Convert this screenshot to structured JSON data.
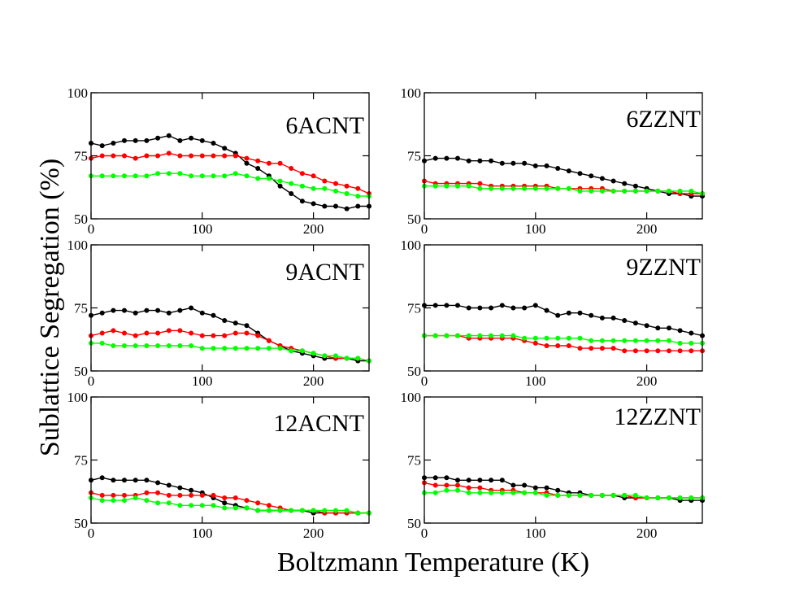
{
  "figure": {
    "ylabel": "Sublattice Segregation (%)",
    "xlabel": "Boltzmann Temperature (K)"
  },
  "chart_data": [
    {
      "type": "line",
      "panel_label": "6ACNT",
      "xlim": [
        0,
        250
      ],
      "ylim": [
        50,
        100
      ],
      "xticks": [
        0,
        100,
        200
      ],
      "yticks": [
        50,
        75,
        100
      ],
      "x": [
        0,
        10,
        20,
        30,
        40,
        50,
        60,
        70,
        80,
        90,
        100,
        110,
        120,
        130,
        140,
        150,
        160,
        170,
        180,
        190,
        200,
        210,
        220,
        230,
        240,
        250
      ],
      "series": [
        {
          "color": "#000000",
          "values": [
            80,
            79,
            80,
            81,
            81,
            81,
            82,
            83,
            81,
            82,
            81,
            80,
            78,
            76,
            72,
            70,
            67,
            63,
            60,
            57,
            56,
            55,
            55,
            54,
            55,
            55
          ]
        },
        {
          "color": "#ff0000",
          "values": [
            74,
            75,
            75,
            75,
            74,
            75,
            75,
            76,
            75,
            75,
            75,
            75,
            75,
            75,
            74,
            73,
            72,
            72,
            70,
            68,
            67,
            65,
            64,
            63,
            62,
            60
          ]
        },
        {
          "color": "#00ff00",
          "values": [
            67,
            67,
            67,
            67,
            67,
            67,
            68,
            68,
            68,
            67,
            67,
            67,
            67,
            68,
            67,
            66,
            66,
            65,
            64,
            63,
            62,
            62,
            61,
            60,
            59,
            59
          ]
        }
      ]
    },
    {
      "type": "line",
      "panel_label": "6ZZNT",
      "xlim": [
        0,
        250
      ],
      "ylim": [
        50,
        100
      ],
      "xticks": [
        0,
        100,
        200
      ],
      "yticks": [
        50,
        75,
        100
      ],
      "x": [
        0,
        10,
        20,
        30,
        40,
        50,
        60,
        70,
        80,
        90,
        100,
        110,
        120,
        130,
        140,
        150,
        160,
        170,
        180,
        190,
        200,
        210,
        220,
        230,
        240,
        250
      ],
      "series": [
        {
          "color": "#000000",
          "values": [
            73,
            74,
            74,
            74,
            73,
            73,
            73,
            72,
            72,
            72,
            71,
            71,
            70,
            69,
            68,
            67,
            66,
            65,
            64,
            63,
            62,
            61,
            60,
            60,
            59,
            59
          ]
        },
        {
          "color": "#ff0000",
          "values": [
            65,
            64,
            64,
            64,
            64,
            64,
            63,
            63,
            63,
            63,
            63,
            63,
            62,
            62,
            62,
            62,
            62,
            61,
            61,
            61,
            61,
            61,
            61,
            60,
            60,
            60
          ]
        },
        {
          "color": "#00ff00",
          "values": [
            63,
            63,
            63,
            63,
            63,
            62,
            62,
            62,
            62,
            62,
            62,
            62,
            62,
            62,
            61,
            61,
            61,
            61,
            61,
            61,
            61,
            61,
            61,
            61,
            61,
            60
          ]
        }
      ]
    },
    {
      "type": "line",
      "panel_label": "9ACNT",
      "xlim": [
        0,
        250
      ],
      "ylim": [
        50,
        100
      ],
      "xticks": [
        0,
        100,
        200
      ],
      "yticks": [
        50,
        75,
        100
      ],
      "x": [
        0,
        10,
        20,
        30,
        40,
        50,
        60,
        70,
        80,
        90,
        100,
        110,
        120,
        130,
        140,
        150,
        160,
        170,
        180,
        190,
        200,
        210,
        220,
        230,
        240,
        250
      ],
      "series": [
        {
          "color": "#000000",
          "values": [
            72,
            73,
            74,
            74,
            73,
            74,
            74,
            73,
            74,
            75,
            73,
            72,
            70,
            69,
            68,
            65,
            62,
            60,
            58,
            57,
            56,
            55,
            55,
            55,
            54,
            54
          ]
        },
        {
          "color": "#ff0000",
          "values": [
            64,
            65,
            66,
            65,
            64,
            65,
            65,
            66,
            66,
            65,
            64,
            64,
            64,
            65,
            65,
            64,
            62,
            60,
            59,
            58,
            57,
            56,
            55,
            55,
            55,
            54
          ]
        },
        {
          "color": "#00ff00",
          "values": [
            61,
            61,
            60,
            60,
            60,
            60,
            60,
            60,
            60,
            60,
            59,
            59,
            59,
            59,
            59,
            59,
            59,
            59,
            58,
            58,
            57,
            56,
            56,
            55,
            55,
            54
          ]
        }
      ]
    },
    {
      "type": "line",
      "panel_label": "9ZZNT",
      "xlim": [
        0,
        250
      ],
      "ylim": [
        50,
        100
      ],
      "xticks": [
        0,
        100,
        200
      ],
      "yticks": [
        50,
        75,
        100
      ],
      "x": [
        0,
        10,
        20,
        30,
        40,
        50,
        60,
        70,
        80,
        90,
        100,
        110,
        120,
        130,
        140,
        150,
        160,
        170,
        180,
        190,
        200,
        210,
        220,
        230,
        240,
        250
      ],
      "series": [
        {
          "color": "#000000",
          "values": [
            76,
            76,
            76,
            76,
            75,
            75,
            75,
            76,
            75,
            75,
            76,
            74,
            72,
            73,
            73,
            72,
            71,
            71,
            70,
            69,
            68,
            67,
            67,
            66,
            65,
            64
          ]
        },
        {
          "color": "#ff0000",
          "values": [
            64,
            64,
            64,
            64,
            63,
            63,
            63,
            63,
            63,
            62,
            61,
            60,
            60,
            60,
            59,
            59,
            59,
            59,
            58,
            58,
            58,
            58,
            58,
            58,
            58,
            58
          ]
        },
        {
          "color": "#00ff00",
          "values": [
            64,
            64,
            64,
            64,
            64,
            64,
            64,
            64,
            64,
            63,
            63,
            63,
            63,
            63,
            63,
            62,
            62,
            62,
            62,
            62,
            62,
            62,
            62,
            61,
            61,
            61
          ]
        }
      ]
    },
    {
      "type": "line",
      "panel_label": "12ACNT",
      "xlim": [
        0,
        250
      ],
      "ylim": [
        50,
        100
      ],
      "xticks": [
        0,
        100,
        200
      ],
      "yticks": [
        50,
        75,
        100
      ],
      "x": [
        0,
        10,
        20,
        30,
        40,
        50,
        60,
        70,
        80,
        90,
        100,
        110,
        120,
        130,
        140,
        150,
        160,
        170,
        180,
        190,
        200,
        210,
        220,
        230,
        240,
        250
      ],
      "series": [
        {
          "color": "#000000",
          "values": [
            67,
            68,
            67,
            67,
            67,
            67,
            66,
            65,
            64,
            63,
            62,
            60,
            58,
            57,
            56,
            55,
            55,
            55,
            55,
            55,
            54,
            54,
            54,
            54,
            54,
            54
          ]
        },
        {
          "color": "#ff0000",
          "values": [
            62,
            61,
            61,
            61,
            61,
            62,
            62,
            61,
            61,
            61,
            61,
            61,
            60,
            60,
            59,
            58,
            57,
            56,
            55,
            55,
            55,
            54,
            54,
            54,
            54,
            54
          ]
        },
        {
          "color": "#00ff00",
          "values": [
            60,
            59,
            59,
            59,
            60,
            59,
            58,
            58,
            57,
            57,
            57,
            57,
            56,
            56,
            56,
            55,
            55,
            55,
            55,
            55,
            55,
            55,
            55,
            55,
            54,
            54
          ]
        }
      ]
    },
    {
      "type": "line",
      "panel_label": "12ZZNT",
      "xlim": [
        0,
        250
      ],
      "ylim": [
        50,
        100
      ],
      "xticks": [
        0,
        100,
        200
      ],
      "yticks": [
        50,
        75,
        100
      ],
      "x": [
        0,
        10,
        20,
        30,
        40,
        50,
        60,
        70,
        80,
        90,
        100,
        110,
        120,
        130,
        140,
        150,
        160,
        170,
        180,
        190,
        200,
        210,
        220,
        230,
        240,
        250
      ],
      "series": [
        {
          "color": "#000000",
          "values": [
            68,
            68,
            68,
            67,
            67,
            67,
            67,
            67,
            65,
            65,
            64,
            64,
            63,
            62,
            62,
            61,
            61,
            61,
            60,
            60,
            60,
            60,
            60,
            59,
            59,
            59
          ]
        },
        {
          "color": "#ff0000",
          "values": [
            66,
            65,
            65,
            65,
            64,
            64,
            63,
            63,
            63,
            62,
            62,
            62,
            61,
            61,
            61,
            61,
            61,
            61,
            61,
            60,
            60,
            60,
            60,
            60,
            60,
            60
          ]
        },
        {
          "color": "#00ff00",
          "values": [
            62,
            62,
            63,
            63,
            62,
            62,
            62,
            62,
            62,
            62,
            62,
            61,
            61,
            61,
            61,
            61,
            61,
            61,
            61,
            61,
            60,
            60,
            60,
            60,
            60,
            60
          ]
        }
      ]
    }
  ]
}
